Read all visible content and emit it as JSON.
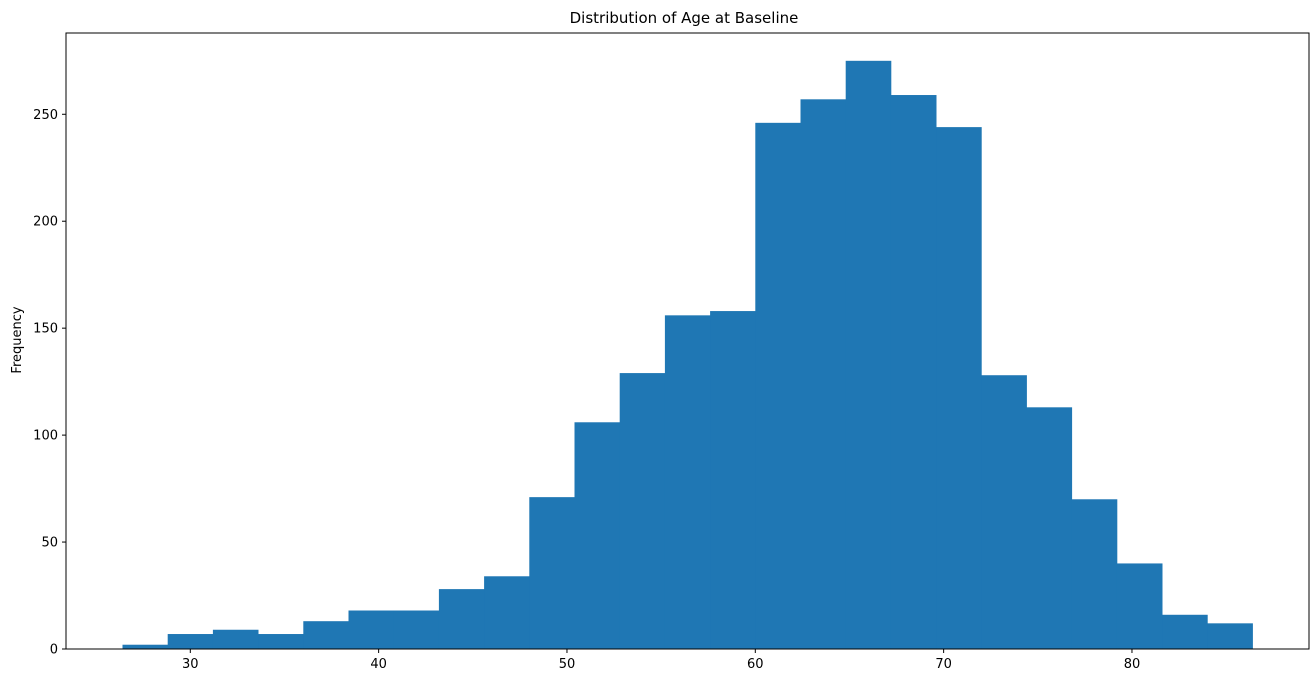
{
  "chart_data": {
    "type": "bar",
    "title": "Distribution of Age at Baseline",
    "xlabel": "",
    "ylabel": "Frequency",
    "bin_edges": [
      26.4,
      28.8,
      31.2,
      33.6,
      36.0,
      38.4,
      40.8,
      43.2,
      45.6,
      48.0,
      50.4,
      52.8,
      55.2,
      57.6,
      60.0,
      62.4,
      64.8,
      67.2,
      69.6,
      72.0,
      74.4,
      76.8,
      79.2,
      81.6,
      84.0,
      86.4
    ],
    "values": [
      2,
      7,
      9,
      7,
      13,
      18,
      18,
      28,
      34,
      71,
      106,
      129,
      156,
      158,
      246,
      257,
      275,
      259,
      244,
      128,
      113,
      70,
      40,
      16,
      12
    ],
    "xlim": [
      23.4,
      89.4
    ],
    "ylim": [
      0,
      288
    ],
    "xticks": [
      30,
      40,
      50,
      60,
      70,
      80
    ],
    "yticks": [
      0,
      50,
      100,
      150,
      200,
      250
    ],
    "bar_color": "#1f77b4",
    "grid": false,
    "legend": "none"
  }
}
